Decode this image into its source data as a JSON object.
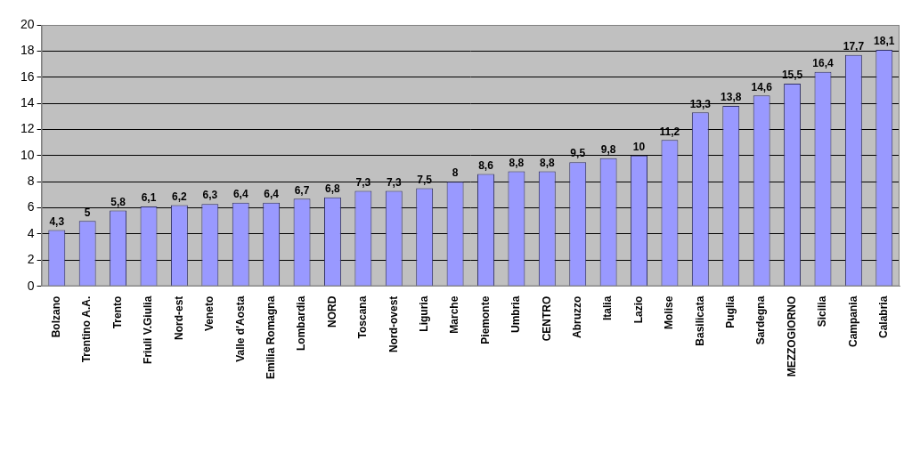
{
  "chart_data": {
    "type": "bar",
    "categories": [
      "Bolzano",
      "Trentino A.A.",
      "Trento",
      "Friuli V.Giulia",
      "Nord-est",
      "Veneto",
      "Valle d'Aosta",
      "Emilia Romagna",
      "Lombardia",
      "NORD",
      "Toscana",
      "Nord-ovest",
      "Liguria",
      "Marche",
      "Piemonte",
      "Umbria",
      "CENTRO",
      "Abruzzo",
      "Italia",
      "Lazio",
      "Molise",
      "Basilicata",
      "Puglia",
      "Sardegna",
      "MEZZOGIORNO",
      "Sicilia",
      "Campania",
      "Calabria"
    ],
    "values": [
      4.3,
      5,
      5.8,
      6.1,
      6.2,
      6.3,
      6.4,
      6.4,
      6.7,
      6.8,
      7.3,
      7.3,
      7.5,
      8,
      8.6,
      8.8,
      8.8,
      9.5,
      9.8,
      10,
      11.2,
      13.3,
      13.8,
      14.6,
      15.5,
      16.4,
      17.7,
      18.1
    ],
    "value_labels": [
      "4,3",
      "5",
      "5,8",
      "6,1",
      "6,2",
      "6,3",
      "6,4",
      "6,4",
      "6,7",
      "6,8",
      "7,3",
      "7,3",
      "7,5",
      "8",
      "8,6",
      "8,8",
      "8,8",
      "9,5",
      "9,8",
      "10",
      "11,2",
      "13,3",
      "13,8",
      "14,6",
      "15,5",
      "16,4",
      "17,7",
      "18,1"
    ],
    "color": "#9999ff",
    "ylim": [
      0,
      20
    ],
    "yticks": [
      0,
      2,
      4,
      6,
      8,
      10,
      12,
      14,
      16,
      18,
      20
    ],
    "grid": true,
    "data_labels": true
  }
}
